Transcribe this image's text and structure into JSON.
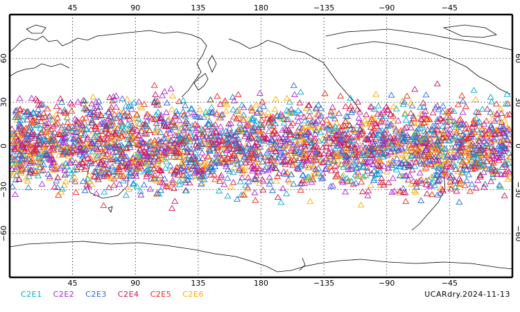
{
  "chart_data": {
    "type": "scatter",
    "projection": "cylindrical equidistant, centered at 180",
    "lon_ticks_top": [
      "45",
      "90",
      "135",
      "180",
      "−135",
      "−90",
      "−45"
    ],
    "lon_ticks_bottom": [
      "45",
      "90",
      "135",
      "180",
      "−135",
      "−90",
      "−45"
    ],
    "lat_ticks_left": [
      "60",
      "30",
      "0",
      "−30",
      "−60"
    ],
    "lat_ticks_right": [
      "60",
      "30",
      "0",
      "−30",
      "−60"
    ],
    "grid": "dotted",
    "marker": "open triangle",
    "lat_range_of_points": [
      -45,
      45
    ],
    "series": [
      {
        "name": "C2E1",
        "color": "#00aacc"
      },
      {
        "name": "C2E2",
        "color": "#aa22cc"
      },
      {
        "name": "C2E3",
        "color": "#2266dd"
      },
      {
        "name": "C2E4",
        "color": "#cc1155"
      },
      {
        "name": "C2E5",
        "color": "#ee2211"
      },
      {
        "name": "C2E6",
        "color": "#ffaa00"
      }
    ]
  },
  "dataset_label": "UCARdry.2024-11-13"
}
